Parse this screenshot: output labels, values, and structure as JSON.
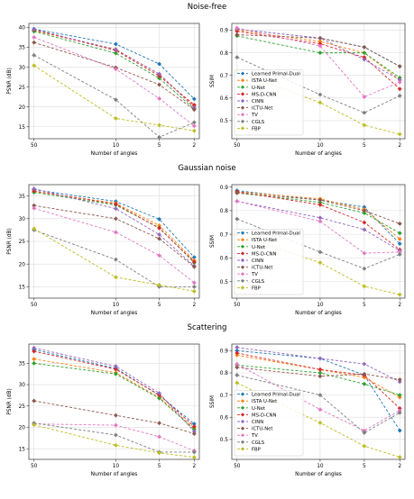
{
  "figure": {
    "section_titles": [
      "Noise-free",
      "Gaussian noise",
      "Scattering"
    ]
  },
  "series_styles": [
    {
      "name": "Learned Primal-Dual",
      "color": "#1f77b4",
      "marker": "D"
    },
    {
      "name": "ISTA U-Net",
      "color": "#ff7f0e",
      "marker": "D"
    },
    {
      "name": "U-Net",
      "color": "#2ca02c",
      "marker": "D"
    },
    {
      "name": "MS-D-CNN",
      "color": "#d62728",
      "marker": "D"
    },
    {
      "name": "CINN",
      "color": "#9467bd",
      "marker": "D"
    },
    {
      "name": "iCTU-Net",
      "color": "#8c564b",
      "marker": "D"
    },
    {
      "name": "TV",
      "color": "#e377c2",
      "marker": "D"
    },
    {
      "name": "CGLS",
      "color": "#7f7f7f",
      "marker": "D"
    },
    {
      "name": "FBP",
      "color": "#bcbd22",
      "marker": "D"
    }
  ],
  "chart_data": [
    {
      "type": "line",
      "section": "Noise-free",
      "metric": "PSNR",
      "categories": [
        "50",
        "10",
        "5",
        "2"
      ],
      "xlabel": "Number of angles",
      "ylabel": "PSNR (dB)",
      "ylim": [
        12,
        41
      ],
      "yticks": [
        15,
        20,
        25,
        30,
        35,
        40
      ],
      "grid": true,
      "legend": "",
      "series": [
        {
          "name": "Learned Primal-Dual",
          "values": [
            39.6,
            35.8,
            30.8,
            22.0
          ]
        },
        {
          "name": "ISTA U-Net",
          "values": [
            39.2,
            34.5,
            28.2,
            20.2
          ]
        },
        {
          "name": "U-Net",
          "values": [
            39.0,
            33.5,
            27.2,
            19.5
          ]
        },
        {
          "name": "MS-D-CNN",
          "values": [
            39.4,
            34.2,
            27.8,
            20.5
          ]
        },
        {
          "name": "CINN",
          "values": [
            39.5,
            34.4,
            28.3,
            19.8
          ]
        },
        {
          "name": "iCTU-Net",
          "values": [
            36.2,
            29.9,
            25.6,
            19.3
          ]
        },
        {
          "name": "TV",
          "values": [
            37.5,
            29.5,
            22.1,
            15.2
          ]
        },
        {
          "name": "CGLS",
          "values": [
            33.0,
            21.8,
            12.4,
            16.1
          ]
        },
        {
          "name": "FBP",
          "values": [
            30.4,
            17.1,
            15.4,
            14.0
          ]
        }
      ]
    },
    {
      "type": "line",
      "section": "Noise-free",
      "metric": "SSIM",
      "categories": [
        "50",
        "10",
        "5",
        "2"
      ],
      "xlabel": "Number of angles",
      "ylabel": "SSIM",
      "ylim": [
        0.42,
        0.93
      ],
      "yticks": [
        0.5,
        0.6,
        0.7,
        0.8,
        0.9
      ],
      "grid": true,
      "legend": "lower-left",
      "series": [
        {
          "name": "Learned Primal-Dual",
          "values": [
            0.905,
            0.865,
            0.825,
            0.74
          ]
        },
        {
          "name": "ISTA U-Net",
          "values": [
            0.9,
            0.85,
            0.8,
            0.68
          ]
        },
        {
          "name": "U-Net",
          "values": [
            0.875,
            0.8,
            0.8,
            0.69
          ]
        },
        {
          "name": "MS-D-CNN",
          "values": [
            0.895,
            0.84,
            0.78,
            0.64
          ]
        },
        {
          "name": "CINN",
          "values": [
            0.905,
            0.865,
            0.77,
            0.68
          ]
        },
        {
          "name": "iCTU-Net",
          "values": [
            0.88,
            0.865,
            0.825,
            0.74
          ]
        },
        {
          "name": "TV",
          "values": [
            0.91,
            0.83,
            0.605,
            0.67
          ]
        },
        {
          "name": "CGLS",
          "values": [
            0.78,
            0.615,
            0.535,
            0.61
          ]
        },
        {
          "name": "FBP",
          "values": [
            0.715,
            0.58,
            0.48,
            0.44
          ]
        }
      ]
    },
    {
      "type": "line",
      "section": "Gaussian noise",
      "metric": "PSNR",
      "categories": [
        "50",
        "10",
        "5",
        "2"
      ],
      "xlabel": "Number of angles",
      "ylabel": "PSNR (dB)",
      "ylim": [
        12.5,
        37.5
      ],
      "yticks": [
        15,
        20,
        25,
        30,
        35
      ],
      "grid": true,
      "legend": "",
      "series": [
        {
          "name": "Learned Primal-Dual",
          "values": [
            36.4,
            33.8,
            29.9,
            21.5
          ]
        },
        {
          "name": "ISTA U-Net",
          "values": [
            36.0,
            33.4,
            28.5,
            20.8
          ]
        },
        {
          "name": "U-Net",
          "values": [
            35.8,
            33.0,
            28.0,
            20.3
          ]
        },
        {
          "name": "MS-D-CNN",
          "values": [
            36.1,
            33.2,
            27.9,
            20.5
          ]
        },
        {
          "name": "CINN",
          "values": [
            36.6,
            32.2,
            26.5,
            19.6
          ]
        },
        {
          "name": "iCTU-Net",
          "values": [
            32.9,
            30.0,
            25.6,
            19.4
          ]
        },
        {
          "name": "TV",
          "values": [
            32.3,
            27.0,
            21.9,
            15.9
          ]
        },
        {
          "name": "CGLS",
          "values": [
            27.5,
            21.0,
            15.0,
            15.0
          ]
        },
        {
          "name": "FBP",
          "values": [
            27.8,
            17.1,
            15.4,
            14.0
          ]
        }
      ]
    },
    {
      "type": "line",
      "section": "Gaussian noise",
      "metric": "SSIM",
      "categories": [
        "50",
        "10",
        "5",
        "2"
      ],
      "xlabel": "Number of angles",
      "ylabel": "SSIM",
      "ylim": [
        0.43,
        0.91
      ],
      "yticks": [
        0.5,
        0.6,
        0.7,
        0.8,
        0.9
      ],
      "grid": true,
      "legend": "lower-left",
      "series": [
        {
          "name": "Learned Primal-Dual",
          "values": [
            0.885,
            0.845,
            0.815,
            0.66
          ]
        },
        {
          "name": "ISTA U-Net",
          "values": [
            0.88,
            0.85,
            0.805,
            0.68
          ]
        },
        {
          "name": "U-Net",
          "values": [
            0.875,
            0.835,
            0.79,
            0.705
          ]
        },
        {
          "name": "MS-D-CNN",
          "values": [
            0.88,
            0.825,
            0.75,
            0.635
          ]
        },
        {
          "name": "CINN",
          "values": [
            0.84,
            0.77,
            0.72,
            0.63
          ]
        },
        {
          "name": "iCTU-Net",
          "values": [
            0.875,
            0.845,
            0.8,
            0.745
          ]
        },
        {
          "name": "TV",
          "values": [
            0.84,
            0.755,
            0.62,
            0.625
          ]
        },
        {
          "name": "CGLS",
          "values": [
            0.765,
            0.625,
            0.555,
            0.615
          ]
        },
        {
          "name": "FBP",
          "values": [
            0.7,
            0.58,
            0.48,
            0.445
          ]
        }
      ]
    },
    {
      "type": "line",
      "section": "Scattering",
      "metric": "PSNR",
      "categories": [
        "50",
        "10",
        "5",
        "2"
      ],
      "xlabel": "Number of angles",
      "ylabel": "PSNR (dB)",
      "ylim": [
        12.5,
        39.5
      ],
      "yticks": [
        15,
        20,
        25,
        30,
        35
      ],
      "grid": true,
      "legend": "",
      "series": [
        {
          "name": "Learned Primal-Dual",
          "values": [
            38.2,
            33.8,
            27.5,
            20.8
          ]
        },
        {
          "name": "ISTA U-Net",
          "values": [
            36.0,
            32.8,
            27.0,
            19.8
          ]
        },
        {
          "name": "U-Net",
          "values": [
            35.0,
            32.5,
            26.8,
            19.5
          ]
        },
        {
          "name": "MS-D-CNN",
          "values": [
            37.8,
            33.6,
            27.6,
            20.2
          ]
        },
        {
          "name": "CINN",
          "values": [
            38.6,
            34.3,
            28.0,
            19.0
          ]
        },
        {
          "name": "iCTU-Net",
          "values": [
            26.2,
            22.8,
            21.0,
            18.5
          ]
        },
        {
          "name": "TV",
          "values": [
            20.8,
            20.5,
            17.8,
            14.5
          ]
        },
        {
          "name": "CGLS",
          "values": [
            21.0,
            18.2,
            14.2,
            14.2
          ]
        },
        {
          "name": "FBP",
          "values": [
            20.6,
            15.8,
            14.0,
            13.0
          ]
        }
      ]
    },
    {
      "type": "line",
      "section": "Scattering",
      "metric": "SSIM",
      "categories": [
        "50",
        "10",
        "5",
        "2"
      ],
      "xlabel": "Number of angles",
      "ylabel": "SSIM",
      "ylim": [
        0.41,
        0.93
      ],
      "yticks": [
        0.5,
        0.6,
        0.7,
        0.8,
        0.9
      ],
      "grid": true,
      "legend": "lower-left",
      "series": [
        {
          "name": "Learned Primal-Dual",
          "values": [
            0.9,
            0.865,
            0.79,
            0.54
          ]
        },
        {
          "name": "ISTA U-Net",
          "values": [
            0.88,
            0.815,
            0.78,
            0.69
          ]
        },
        {
          "name": "U-Net",
          "values": [
            0.835,
            0.8,
            0.75,
            0.7
          ]
        },
        {
          "name": "MS-D-CNN",
          "values": [
            0.89,
            0.815,
            0.79,
            0.64
          ]
        },
        {
          "name": "CINN",
          "values": [
            0.915,
            0.865,
            0.84,
            0.76
          ]
        },
        {
          "name": "iCTU-Net",
          "values": [
            0.825,
            0.785,
            0.795,
            0.77
          ]
        },
        {
          "name": "TV",
          "values": [
            0.84,
            0.635,
            0.54,
            0.63
          ]
        },
        {
          "name": "CGLS",
          "values": [
            0.79,
            0.7,
            0.53,
            0.62
          ]
        },
        {
          "name": "FBP",
          "values": [
            0.755,
            0.575,
            0.47,
            0.42
          ]
        }
      ]
    }
  ]
}
